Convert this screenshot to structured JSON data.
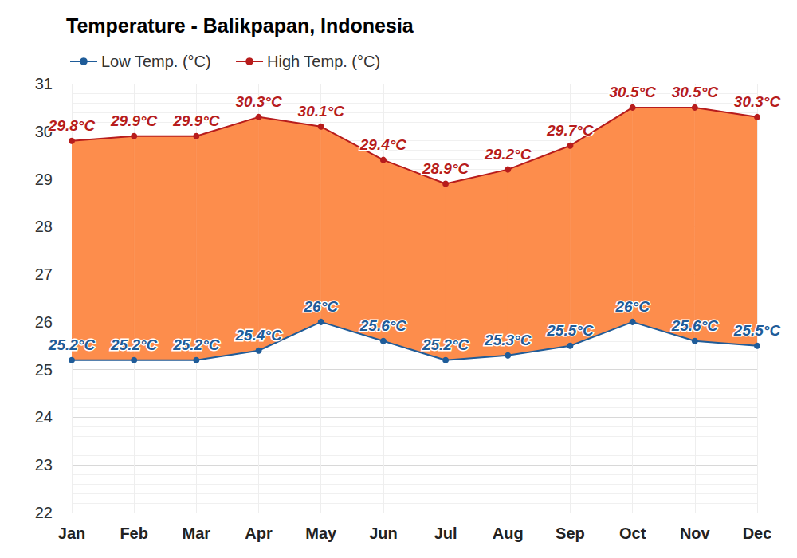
{
  "chart_data": {
    "type": "line",
    "title": "Temperature - Balikpapan, Indonesia",
    "categories": [
      "Jan",
      "Feb",
      "Mar",
      "Apr",
      "May",
      "Jun",
      "Jul",
      "Aug",
      "Sep",
      "Oct",
      "Nov",
      "Dec"
    ],
    "series": [
      {
        "name": "Low Temp. (°C)",
        "color": "#1f5c99",
        "marker": "circle",
        "values": [
          25.2,
          25.2,
          25.2,
          25.4,
          26,
          25.6,
          25.2,
          25.3,
          25.5,
          26,
          25.6,
          25.5
        ],
        "value_labels": [
          "25.2°C",
          "25.2°C",
          "25.2°C",
          "25.4°C",
          "26°C",
          "25.6°C",
          "25.2°C",
          "25.3°C",
          "25.5°C",
          "26°C",
          "25.6°C",
          "25.5°C"
        ]
      },
      {
        "name": "High Temp. (°C)",
        "color": "#b71c1c",
        "marker": "circle",
        "values": [
          29.8,
          29.9,
          29.9,
          30.3,
          30.1,
          29.4,
          28.9,
          29.2,
          29.7,
          30.5,
          30.5,
          30.3
        ],
        "value_labels": [
          "29.8°C",
          "29.9°C",
          "29.9°C",
          "30.3°C",
          "30.1°C",
          "29.4°C",
          "28.9°C",
          "29.2°C",
          "29.7°C",
          "30.5°C",
          "30.5°C",
          "30.3°C"
        ]
      }
    ],
    "ylim": [
      22,
      31
    ],
    "yticks": [
      22,
      23,
      24,
      25,
      26,
      27,
      28,
      29,
      30,
      31
    ],
    "grid": true,
    "legend": "top-left",
    "data_labels": true
  }
}
